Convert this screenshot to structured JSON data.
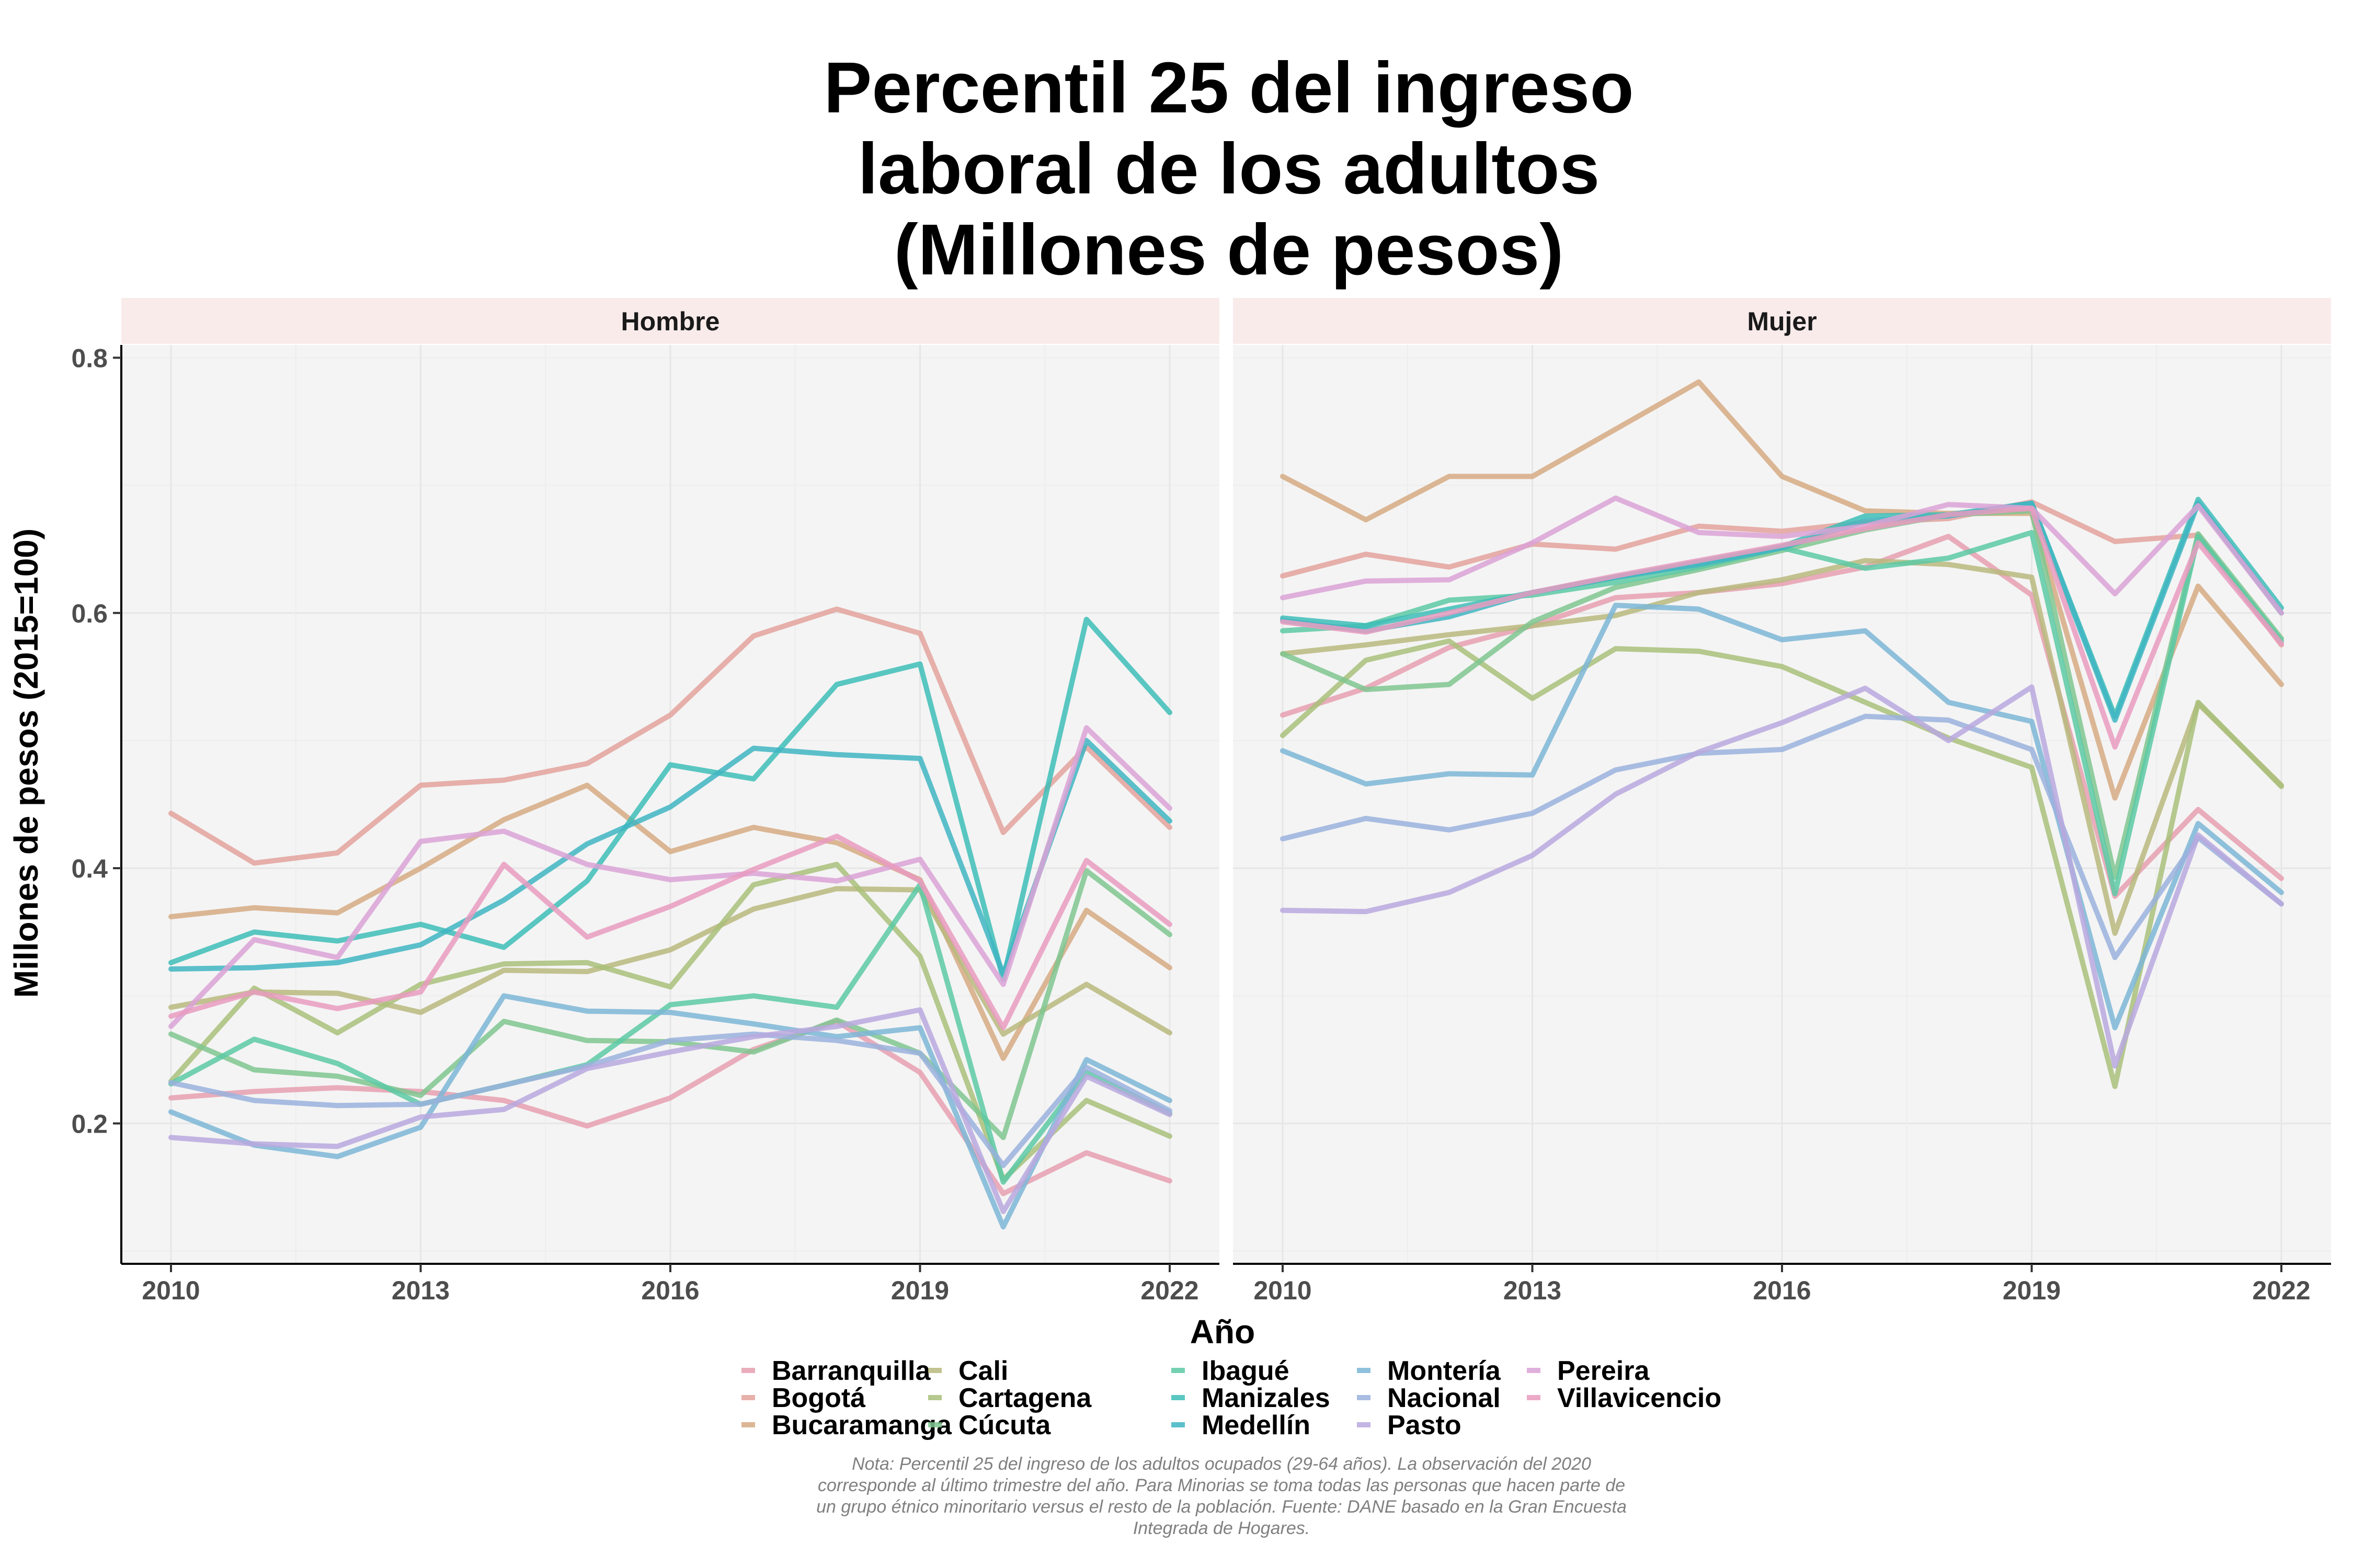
{
  "chart_data": {
    "type": "line",
    "title": [
      "Percentil 25 del ingreso",
      "laboral de los adultos",
      "(Millones de pesos)"
    ],
    "xlabel": "Año",
    "ylabel": "Millones de pesos (2015=100)",
    "x": [
      2010,
      2011,
      2012,
      2013,
      2014,
      2015,
      2016,
      2017,
      2018,
      2019,
      2020,
      2021,
      2022
    ],
    "xticks": [
      "2010",
      "2013",
      "2016",
      "2019",
      "2022"
    ],
    "yticks": [
      "0.2",
      "0.4",
      "0.6",
      "0.8"
    ],
    "ylim": [
      0.09,
      0.81
    ],
    "grid": true,
    "legend_position": "bottom",
    "note": [
      "Nota: Percentil 25 del ingreso de los adultos ocupados (29-64 años). La observación del 2020",
      "corresponde al último trimestre del año. Para Minorias se toma todas las personas que hacen parte de",
      "un grupo étnico minoritario versus el resto de la población. Fuente: DANE basado en la Gran Encuesta",
      "Integrada de Hogares."
    ],
    "colors": {
      "Barranquilla": "#E69FB0",
      "Bogotá": "#E3A29C",
      "Bucaramanga": "#D6AA82",
      "Cali": "#B9B87E",
      "Cartagena": "#A9C07A",
      "Cúcuta": "#7FC58F",
      "Ibagué": "#5CC9A5",
      "Manizales": "#3DBDB7",
      "Medellín": "#40B5C2",
      "Montería": "#7DB6D6",
      "Nacional": "#9AB1DD",
      "Pasto": "#B8A8DE",
      "Pereira": "#DAA2D6",
      "Villavicencio": "#E99BBF"
    },
    "panels": [
      {
        "label": "Hombre",
        "series": [
          {
            "name": "Barranquilla",
            "values": [
              0.22,
              0.225,
              0.228,
              0.225,
              0.218,
              0.198,
              0.22,
              0.258,
              0.28,
              0.24,
              0.145,
              0.177,
              0.155
            ]
          },
          {
            "name": "Bogotá",
            "values": [
              0.443,
              0.404,
              0.412,
              0.465,
              0.469,
              0.482,
              0.52,
              0.582,
              0.603,
              0.584,
              0.428,
              0.495,
              0.432
            ]
          },
          {
            "name": "Bucaramanga",
            "values": [
              0.362,
              0.369,
              0.365,
              0.4,
              0.438,
              0.465,
              0.413,
              0.432,
              0.42,
              0.391,
              0.251,
              0.367,
              0.322
            ]
          },
          {
            "name": "Cali",
            "values": [
              0.291,
              0.303,
              0.302,
              0.287,
              0.32,
              0.319,
              0.336,
              0.368,
              0.384,
              0.383,
              0.27,
              0.309,
              0.271
            ]
          },
          {
            "name": "Cartagena",
            "values": [
              0.233,
              0.306,
              0.271,
              0.309,
              0.325,
              0.326,
              0.307,
              0.387,
              0.403,
              0.331,
              0.156,
              0.218,
              0.19
            ]
          },
          {
            "name": "Cúcuta",
            "values": [
              0.27,
              0.242,
              0.237,
              0.222,
              0.28,
              0.265,
              0.264,
              0.256,
              0.281,
              0.255,
              0.189,
              0.398,
              0.348
            ]
          },
          {
            "name": "Ibagué",
            "values": [
              0.231,
              0.266,
              0.247,
              0.215,
              0.23,
              0.246,
              0.293,
              0.3,
              0.291,
              0.387,
              0.154,
              0.24,
              0.208
            ]
          },
          {
            "name": "Manizales",
            "values": [
              0.326,
              0.35,
              0.343,
              0.356,
              0.338,
              0.39,
              0.481,
              0.47,
              0.544,
              0.56,
              0.313,
              0.595,
              0.522
            ]
          },
          {
            "name": "Medellín",
            "values": [
              0.321,
              0.322,
              0.326,
              0.34,
              0.375,
              0.419,
              0.448,
              0.494,
              0.489,
              0.486,
              0.317,
              0.5,
              0.437
            ]
          },
          {
            "name": "Montería",
            "values": [
              0.209,
              0.183,
              0.174,
              0.197,
              0.3,
              0.288,
              0.287,
              0.278,
              0.268,
              0.275,
              0.119,
              0.25,
              0.218
            ]
          },
          {
            "name": "Nacional",
            "values": [
              0.232,
              0.218,
              0.214,
              0.215,
              0.23,
              0.245,
              0.265,
              0.27,
              0.265,
              0.255,
              0.167,
              0.244,
              0.21
            ]
          },
          {
            "name": "Pasto",
            "values": [
              0.189,
              0.184,
              0.182,
              0.205,
              0.211,
              0.243,
              0.256,
              0.268,
              0.276,
              0.289,
              0.131,
              0.237,
              0.207
            ]
          },
          {
            "name": "Pereira",
            "values": [
              0.276,
              0.344,
              0.33,
              0.421,
              0.429,
              0.403,
              0.391,
              0.396,
              0.39,
              0.407,
              0.309,
              0.51,
              0.447
            ]
          },
          {
            "name": "Villavicencio",
            "values": [
              0.284,
              0.303,
              0.29,
              0.303,
              0.403,
              0.346,
              0.37,
              0.399,
              0.425,
              0.39,
              0.275,
              0.406,
              0.356
            ]
          }
        ]
      },
      {
        "label": "Mujer",
        "series": [
          {
            "name": "Barranquilla",
            "values": [
              0.52,
              0.541,
              0.573,
              0.59,
              0.612,
              0.616,
              0.623,
              0.636,
              0.66,
              0.614,
              0.378,
              0.446,
              0.392
            ]
          },
          {
            "name": "Bogotá",
            "values": [
              0.629,
              0.646,
              0.636,
              0.654,
              0.65,
              0.668,
              0.664,
              0.671,
              0.674,
              0.687,
              0.656,
              0.661,
              0.575
            ]
          },
          {
            "name": "Bucaramanga",
            "values": [
              0.707,
              0.673,
              0.707,
              0.707,
              0.744,
              0.781,
              0.707,
              0.68,
              0.678,
              0.678,
              0.455,
              0.621,
              0.544
            ]
          },
          {
            "name": "Cali",
            "values": [
              0.568,
              0.575,
              0.583,
              0.59,
              0.598,
              0.616,
              0.626,
              0.641,
              0.638,
              0.628,
              0.349,
              0.529,
              0.465
            ]
          },
          {
            "name": "Cartagena",
            "values": [
              0.504,
              0.563,
              0.578,
              0.533,
              0.572,
              0.57,
              0.558,
              0.53,
              0.502,
              0.479,
              0.229,
              0.53,
              0.464
            ]
          },
          {
            "name": "Cúcuta",
            "values": [
              0.568,
              0.54,
              0.544,
              0.593,
              0.62,
              0.634,
              0.649,
              0.665,
              0.677,
              0.68,
              0.393,
              0.662,
              0.58
            ]
          },
          {
            "name": "Ibagué",
            "values": [
              0.586,
              0.59,
              0.61,
              0.614,
              0.624,
              0.636,
              0.651,
              0.635,
              0.643,
              0.663,
              0.38,
              0.66,
              0.578
            ]
          },
          {
            "name": "Manizales",
            "values": [
              0.596,
              0.59,
              0.603,
              0.616,
              0.628,
              0.64,
              0.652,
              0.676,
              0.677,
              0.686,
              0.519,
              0.689,
              0.604
            ]
          },
          {
            "name": "Medellín",
            "values": [
              0.594,
              0.586,
              0.597,
              0.616,
              0.628,
              0.638,
              0.651,
              0.672,
              0.676,
              0.686,
              0.516,
              0.686,
              0.6
            ]
          },
          {
            "name": "Montería",
            "values": [
              0.492,
              0.466,
              0.474,
              0.473,
              0.606,
              0.603,
              0.579,
              0.586,
              0.53,
              0.515,
              0.275,
              0.435,
              0.381
            ]
          },
          {
            "name": "Nacional",
            "values": [
              0.423,
              0.439,
              0.43,
              0.443,
              0.477,
              0.49,
              0.493,
              0.519,
              0.516,
              0.493,
              0.33,
              0.424,
              0.372
            ]
          },
          {
            "name": "Pasto",
            "values": [
              0.367,
              0.366,
              0.381,
              0.41,
              0.458,
              0.491,
              0.514,
              0.541,
              0.5,
              0.542,
              0.245,
              0.426,
              0.372
            ]
          },
          {
            "name": "Pereira",
            "values": [
              0.612,
              0.625,
              0.626,
              0.655,
              0.69,
              0.663,
              0.66,
              0.668,
              0.685,
              0.682,
              0.615,
              0.684,
              0.6
            ]
          },
          {
            "name": "Villavicencio",
            "values": [
              0.593,
              0.585,
              0.6,
              0.616,
              0.629,
              0.641,
              0.653,
              0.666,
              0.677,
              0.682,
              0.495,
              0.655,
              0.576
            ]
          }
        ]
      }
    ]
  }
}
